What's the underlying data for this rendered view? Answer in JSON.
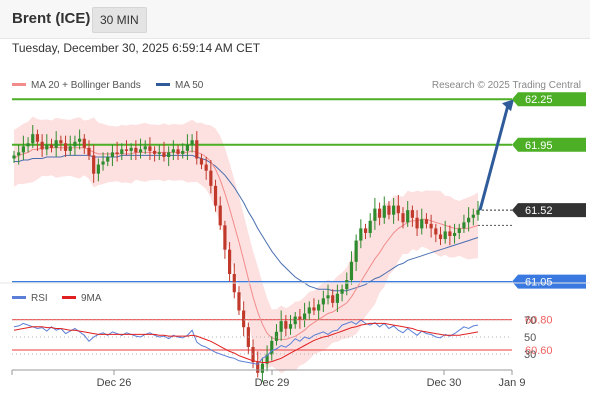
{
  "header": {
    "instrument": "Brent (ICE)",
    "timeframe": "30 MIN"
  },
  "datetime": "Tuesday, December 30, 2025 6:59:14 AM CET",
  "legend": [
    {
      "label": "MA 20 + Bollinger Bands",
      "color": "#f28b8b"
    },
    {
      "label": "MA 50",
      "color": "#2f5b9a"
    }
  ],
  "credit": "Research © 2025 Trading Central",
  "rsi_legend": [
    {
      "label": "RSI",
      "color": "#5b7fd6"
    },
    {
      "label": "9MA",
      "color": "#e02020"
    }
  ],
  "colors": {
    "resistance": "#4caf26",
    "pivot": "#3a7ae0",
    "support": "#ef6060",
    "current": "#333333",
    "arrow": "#2f5b9a",
    "up": "#2e8b2e",
    "down": "#c0392b",
    "band": "#fde0e0"
  },
  "chart_data": [
    {
      "type": "candlestick",
      "x_ticks": [
        "Dec 26",
        "Dec 29",
        "Dec 30",
        "Jan 9"
      ],
      "ylim": [
        60.3,
        62.45
      ],
      "levels": [
        {
          "label": "62.25",
          "value": 62.25,
          "kind": "resistance"
        },
        {
          "label": "61.95",
          "value": 61.95,
          "kind": "resistance"
        },
        {
          "label": "61.52",
          "value": 61.52,
          "kind": "current"
        },
        {
          "label": "61.05",
          "value": 61.05,
          "kind": "pivot"
        },
        {
          "label": "60.80",
          "value": 60.8,
          "kind": "support"
        },
        {
          "label": "60.60",
          "value": 60.6,
          "kind": "support"
        }
      ],
      "close_series": [
        61.88,
        61.9,
        61.94,
        61.96,
        62.02,
        61.97,
        61.92,
        61.95,
        61.93,
        61.98,
        61.96,
        61.91,
        61.94,
        61.97,
        61.99,
        61.93,
        61.88,
        61.76,
        61.82,
        61.84,
        61.87,
        61.9,
        61.89,
        61.92,
        61.91,
        61.93,
        61.9,
        61.92,
        61.94,
        61.91,
        61.89,
        61.9,
        61.87,
        61.9,
        61.92,
        61.89,
        61.91,
        61.95,
        61.98,
        61.86,
        61.82,
        61.78,
        61.68,
        61.55,
        61.42,
        61.26,
        61.1,
        60.98,
        60.86,
        60.75,
        60.62,
        60.52,
        60.45,
        60.51,
        60.57,
        60.66,
        60.72,
        60.79,
        60.74,
        60.77,
        60.82,
        60.8,
        60.84,
        60.88,
        60.86,
        60.9,
        60.94,
        60.96,
        60.91,
        60.97,
        61.0,
        61.06,
        61.18,
        61.32,
        61.4,
        61.37,
        61.45,
        61.53,
        61.47,
        61.55,
        61.49,
        61.55,
        61.5,
        61.44,
        61.52,
        61.47,
        61.4,
        61.46,
        61.43,
        61.4,
        61.36,
        61.33,
        61.38,
        61.35,
        61.37,
        61.4,
        61.44,
        61.47,
        61.49,
        61.52
      ],
      "ma20": [
        61.86,
        61.88,
        61.89,
        61.9,
        61.92,
        61.92,
        61.93,
        61.93,
        61.93,
        61.93,
        61.93,
        61.93,
        61.93,
        61.93,
        61.93,
        61.93,
        61.92,
        61.9,
        61.89,
        61.89,
        61.89,
        61.89,
        61.89,
        61.89,
        61.89,
        61.89,
        61.9,
        61.9,
        61.9,
        61.9,
        61.9,
        61.9,
        61.9,
        61.9,
        61.9,
        61.9,
        61.9,
        61.9,
        61.91,
        61.9,
        61.89,
        61.87,
        61.84,
        61.79,
        61.72,
        61.63,
        61.53,
        61.42,
        61.31,
        61.19,
        61.07,
        60.95,
        60.85,
        60.77,
        60.71,
        60.68,
        60.67,
        60.67,
        60.67,
        60.68,
        60.69,
        60.71,
        60.73,
        60.76,
        60.78,
        60.8,
        60.82,
        60.84,
        60.85,
        60.87,
        60.89,
        60.91,
        60.95,
        61.0,
        61.05,
        61.1,
        61.15,
        61.2,
        61.24,
        61.29,
        61.33,
        61.37,
        61.4,
        61.42,
        61.44,
        61.45,
        61.45,
        61.46,
        61.46,
        61.45,
        61.44,
        61.43,
        61.42,
        61.41,
        61.4,
        61.4,
        61.4,
        61.4,
        61.41,
        61.42
      ],
      "ma50": [
        61.84,
        61.84,
        61.85,
        61.85,
        61.86,
        61.86,
        61.86,
        61.87,
        61.87,
        61.87,
        61.87,
        61.88,
        61.88,
        61.88,
        61.88,
        61.88,
        61.88,
        61.87,
        61.87,
        61.87,
        61.87,
        61.87,
        61.87,
        61.88,
        61.88,
        61.88,
        61.88,
        61.88,
        61.88,
        61.88,
        61.88,
        61.88,
        61.88,
        61.88,
        61.88,
        61.88,
        61.88,
        61.88,
        61.88,
        61.87,
        61.86,
        61.85,
        61.83,
        61.81,
        61.78,
        61.75,
        61.71,
        61.67,
        61.62,
        61.57,
        61.51,
        61.46,
        61.4,
        61.35,
        61.3,
        61.25,
        61.21,
        61.17,
        61.14,
        61.11,
        61.08,
        61.06,
        61.04,
        61.02,
        61.01,
        61.0,
        61.0,
        61.0,
        60.99,
        60.99,
        60.99,
        60.99,
        61.0,
        61.01,
        61.02,
        61.03,
        61.05,
        61.07,
        61.08,
        61.1,
        61.12,
        61.14,
        61.16,
        61.17,
        61.19,
        61.2,
        61.21,
        61.22,
        61.23,
        61.24,
        61.25,
        61.26,
        61.27,
        61.28,
        61.29,
        61.3,
        61.31,
        61.32,
        61.33,
        61.34
      ],
      "forecast": {
        "from": 61.52,
        "to": 62.25
      }
    },
    {
      "type": "line",
      "name": "RSI",
      "ylim": [
        15,
        85
      ],
      "y_ticks": [
        "70",
        "50",
        "30"
      ],
      "rsi": [
        62,
        63,
        66,
        64,
        62,
        60,
        61,
        57,
        62,
        58,
        60,
        54,
        57,
        60,
        56,
        52,
        45,
        50,
        53,
        55,
        52,
        56,
        54,
        52,
        55,
        53,
        51,
        50,
        53,
        55,
        52,
        50,
        51,
        48,
        52,
        50,
        49,
        52,
        58,
        44,
        40,
        38,
        35,
        32,
        30,
        28,
        26,
        25,
        22,
        21,
        20,
        19,
        18,
        25,
        28,
        34,
        36,
        40,
        38,
        42,
        48,
        45,
        50,
        48,
        52,
        54,
        56,
        53,
        57,
        58,
        64,
        66,
        68,
        65,
        70,
        66,
        64,
        67,
        62,
        66,
        60,
        63,
        58,
        55,
        60,
        56,
        52,
        57,
        54,
        53,
        50,
        49,
        53,
        51,
        54,
        58,
        62,
        60,
        63,
        64
      ],
      "ma9": [
        58,
        59,
        60,
        61,
        62,
        62,
        62,
        61,
        61,
        60,
        60,
        59,
        58,
        58,
        57,
        56,
        55,
        54,
        53,
        53,
        53,
        53,
        53,
        53,
        53,
        53,
        53,
        53,
        53,
        53,
        53,
        52,
        52,
        51,
        51,
        51,
        51,
        51,
        52,
        51,
        49,
        47,
        45,
        42,
        39,
        36,
        33,
        31,
        28,
        26,
        24,
        22,
        21,
        20,
        20,
        21,
        23,
        25,
        28,
        31,
        34,
        37,
        40,
        43,
        46,
        48,
        50,
        51,
        53,
        55,
        57,
        59,
        61,
        62,
        64,
        65,
        66,
        66,
        66,
        66,
        65,
        64,
        63,
        62,
        61,
        60,
        58,
        57,
        56,
        55,
        54,
        53,
        52,
        52,
        52,
        52,
        53,
        54,
        55,
        56
      ]
    }
  ]
}
